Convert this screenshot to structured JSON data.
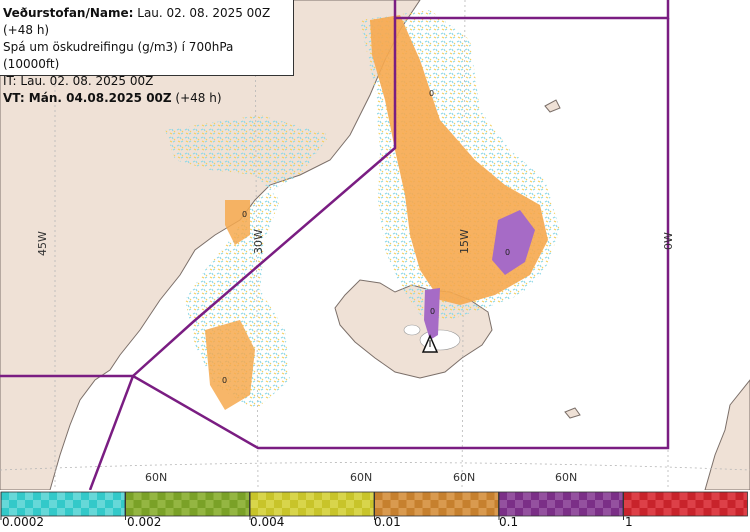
{
  "header": {
    "line1_bold": "Veðurstofan/Name:",
    "line1_rest": " Lau. 02. 08. 2025 00Z (+48 h)",
    "line2": "Spá um öskudreifingu (g/m3) í 700hPa (10000ft)",
    "line3": "IT: Lau. 02. 08. 2025 00Z",
    "line4_bold": "VT: Mán. 04.08.2025 00Z",
    "line4_rest": " (+48 h)"
  },
  "map": {
    "longitude_labels": [
      "45W",
      "30W",
      "15W",
      "0W"
    ],
    "latitude_labels": [
      "60N",
      "60N",
      "60N",
      "60N"
    ],
    "contour_labels": [
      "0",
      "0",
      "0",
      "0",
      "0"
    ],
    "colors": {
      "sea": "#ffffff",
      "land": "#efe1d6",
      "coast": "#7b6f69",
      "boundary": "#7a1d82",
      "grid": "#b7b7b7",
      "ash_light": "#bfe7f0",
      "ash_med": "#f6d66a",
      "ash_orange": "#f6a94f",
      "ash_purple": "#a66bc6"
    },
    "volcano_icon": "warning-triangle-icon"
  },
  "legend": {
    "swatches": [
      {
        "color": "#33c9c9",
        "alt": "#66d8d8"
      },
      {
        "color": "#7aa127",
        "alt": "#94b642"
      },
      {
        "color": "#c8c42a",
        "alt": "#d8d54b"
      },
      {
        "color": "#c6802e",
        "alt": "#d99a4f"
      },
      {
        "color": "#7b2f87",
        "alt": "#94519f"
      },
      {
        "color": "#c8232b",
        "alt": "#dd4048"
      }
    ],
    "labels": [
      "0.0002",
      "0.002",
      "0.004",
      "0.01",
      "0.1",
      "1"
    ]
  }
}
